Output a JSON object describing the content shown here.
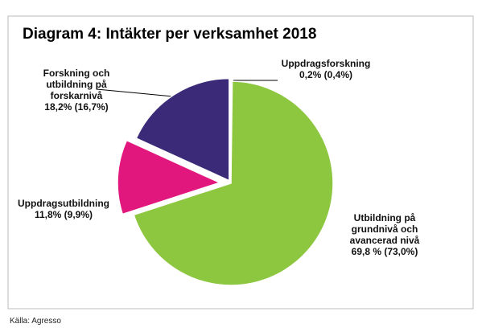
{
  "chart_data": {
    "type": "pie",
    "title": "Diagram 4: Intäkter per verksamhet 2018",
    "categories": [
      "Uppdragsforskning",
      "Utbildning på grundnivå och avancerad nivå",
      "Uppdragsutbildning",
      "Forskning och utbildning på forskarnivå"
    ],
    "values": [
      0.2,
      69.8,
      11.8,
      18.2
    ],
    "value_labels": [
      "0,2% (0,4%)",
      "69,8 % (73,0%)",
      "11,8% (9,9%)",
      "18,2%  (16,7%)"
    ],
    "colors": [
      "#5b9bd5",
      "#8dc63f",
      "#e2177d",
      "#3a2a78"
    ],
    "source": "Källa: Agresso"
  }
}
